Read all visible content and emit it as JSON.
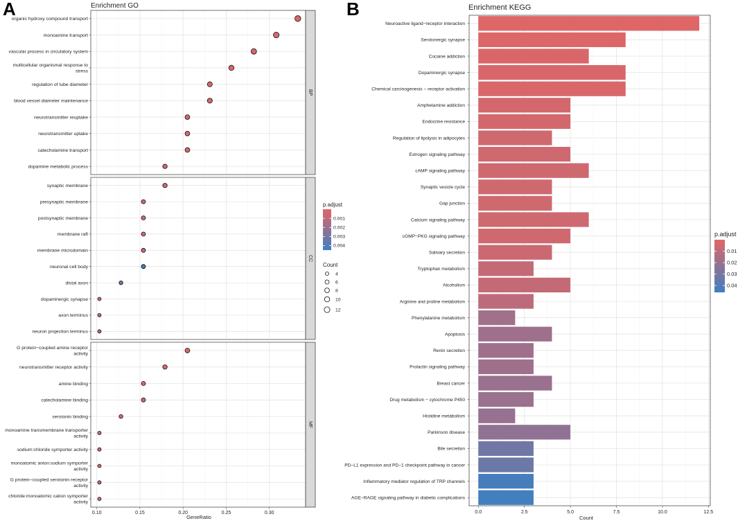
{
  "panels": {
    "a_letter": "A",
    "b_letter": "B"
  },
  "chart_data": [
    {
      "type": "scatter",
      "title": "Enrichment GO",
      "xlabel": "GeneRatio",
      "ylabel": "",
      "xlim": [
        0.093,
        0.342
      ],
      "x_ticks": [
        0.1,
        0.15,
        0.2,
        0.25,
        0.3
      ],
      "x_tick_labels": [
        "0.10",
        "0.15",
        "0.20",
        "0.25",
        "0.30"
      ],
      "grid": true,
      "color_legend": {
        "title": "p.adjust",
        "min": 0.0,
        "max": 0.0045,
        "ticks": [
          0.001,
          0.002,
          0.003,
          0.004
        ],
        "tick_labels": [
          "0.001",
          "0.002",
          "0.003",
          "0.004"
        ],
        "low_color": "#E06666",
        "high_color": "#3F7FC1"
      },
      "size_legend": {
        "title": "Count",
        "values": [
          4,
          6,
          8,
          10,
          12
        ],
        "labels": [
          "4",
          "6",
          "8",
          "10",
          "12"
        ]
      },
      "facets": [
        {
          "label": "BP",
          "points": [
            {
              "term": "organic hydroxy compound transport",
              "lines": [
                "organic hydroxy compound transport"
              ],
              "gene_ratio": 0.333,
              "count": 13,
              "p_adjust": 0.0002
            },
            {
              "term": "monoamine transport",
              "lines": [
                "monoamine transport"
              ],
              "gene_ratio": 0.308,
              "count": 12,
              "p_adjust": 0.0002
            },
            {
              "term": "vascular process in circulatory system",
              "lines": [
                "vascular process in circulatory system"
              ],
              "gene_ratio": 0.282,
              "count": 11,
              "p_adjust": 0.0003
            },
            {
              "term": "multicellular organismal response to stress",
              "lines": [
                "multicellular organismal response to",
                "stress"
              ],
              "gene_ratio": 0.256,
              "count": 10,
              "p_adjust": 0.0003
            },
            {
              "term": "regulation of tube diameter",
              "lines": [
                "regulation of tube diameter"
              ],
              "gene_ratio": 0.231,
              "count": 9,
              "p_adjust": 0.0004
            },
            {
              "term": "blood vessel diameter maintenance",
              "lines": [
                "blood vessel diameter maintenance"
              ],
              "gene_ratio": 0.231,
              "count": 9,
              "p_adjust": 0.0004
            },
            {
              "term": "neurotransmitter reuptake",
              "lines": [
                "neurotransmitter reuptake"
              ],
              "gene_ratio": 0.205,
              "count": 8,
              "p_adjust": 0.0003
            },
            {
              "term": "neurotransmitter uptake",
              "lines": [
                "neurotransmitter uptake"
              ],
              "gene_ratio": 0.205,
              "count": 8,
              "p_adjust": 0.0003
            },
            {
              "term": "catecholamine transport",
              "lines": [
                "catecholamine transport"
              ],
              "gene_ratio": 0.205,
              "count": 8,
              "p_adjust": 0.0003
            },
            {
              "term": "dopamine metabolic process",
              "lines": [
                "dopamine metabolic process"
              ],
              "gene_ratio": 0.179,
              "count": 7,
              "p_adjust": 0.0004
            }
          ]
        },
        {
          "label": "CC",
          "points": [
            {
              "term": "synaptic membrane",
              "lines": [
                "synaptic membrane"
              ],
              "gene_ratio": 0.179,
              "count": 7,
              "p_adjust": 0.0006
            },
            {
              "term": "presynaptic membrane",
              "lines": [
                "presynaptic membrane"
              ],
              "gene_ratio": 0.154,
              "count": 6,
              "p_adjust": 0.0006
            },
            {
              "term": "postsynaptic membrane",
              "lines": [
                "postsynaptic membrane"
              ],
              "gene_ratio": 0.154,
              "count": 6,
              "p_adjust": 0.0006
            },
            {
              "term": "membrane raft",
              "lines": [
                "membrane raft"
              ],
              "gene_ratio": 0.154,
              "count": 6,
              "p_adjust": 0.0006
            },
            {
              "term": "membrane microdomain",
              "lines": [
                "membrane microdomain"
              ],
              "gene_ratio": 0.154,
              "count": 6,
              "p_adjust": 0.0006
            },
            {
              "term": "neuronal cell body",
              "lines": [
                "neuronal cell body"
              ],
              "gene_ratio": 0.154,
              "count": 6,
              "p_adjust": 0.0045
            },
            {
              "term": "distal axon",
              "lines": [
                "distal axon"
              ],
              "gene_ratio": 0.128,
              "count": 5,
              "p_adjust": 0.0028
            },
            {
              "term": "dopaminergic synapse",
              "lines": [
                "dopaminergic synapse"
              ],
              "gene_ratio": 0.103,
              "count": 4,
              "p_adjust": 0.0006
            },
            {
              "term": "axon terminus",
              "lines": [
                "axon terminus"
              ],
              "gene_ratio": 0.103,
              "count": 4,
              "p_adjust": 0.0008
            },
            {
              "term": "neuron projection terminus",
              "lines": [
                "neuron projection terminus"
              ],
              "gene_ratio": 0.103,
              "count": 4,
              "p_adjust": 0.0008
            }
          ]
        },
        {
          "label": "MF",
          "points": [
            {
              "term": "G protein-coupled amine receptor activity",
              "lines": [
                "G protein−coupled amine receptor",
                "activity"
              ],
              "gene_ratio": 0.205,
              "count": 8,
              "p_adjust": 0.0002
            },
            {
              "term": "neurotransmitter receptor activity",
              "lines": [
                "neurotransmitter receptor activity"
              ],
              "gene_ratio": 0.179,
              "count": 7,
              "p_adjust": 0.0003
            },
            {
              "term": "amine binding",
              "lines": [
                "amine binding"
              ],
              "gene_ratio": 0.154,
              "count": 6,
              "p_adjust": 0.0002
            },
            {
              "term": "catecholamine binding",
              "lines": [
                "catecholamine binding"
              ],
              "gene_ratio": 0.154,
              "count": 6,
              "p_adjust": 0.0002
            },
            {
              "term": "serotonin binding",
              "lines": [
                "serotonin binding"
              ],
              "gene_ratio": 0.128,
              "count": 5,
              "p_adjust": 0.0002
            },
            {
              "term": "monoamine transmembrane transporter activity",
              "lines": [
                "monoamine transmembrane transporter",
                "activity"
              ],
              "gene_ratio": 0.103,
              "count": 4,
              "p_adjust": 0.0003
            },
            {
              "term": "sodium:chloride symporter activity",
              "lines": [
                "sodium:chloride symporter activity"
              ],
              "gene_ratio": 0.103,
              "count": 4,
              "p_adjust": 0.0003
            },
            {
              "term": "monoatomic anion:sodium symporter activity",
              "lines": [
                "monoatomic anion:sodium symporter",
                "activity"
              ],
              "gene_ratio": 0.103,
              "count": 4,
              "p_adjust": 0.0003
            },
            {
              "term": "G protein-coupled serotonin receptor activity",
              "lines": [
                "G protein−coupled serotonin receptor",
                "activity"
              ],
              "gene_ratio": 0.103,
              "count": 4,
              "p_adjust": 0.0003
            },
            {
              "term": "chloride:monoatomic cation symporter activity",
              "lines": [
                "chloride:monoatomic cation symporter",
                "activity"
              ],
              "gene_ratio": 0.103,
              "count": 4,
              "p_adjust": 0.0003
            }
          ]
        }
      ]
    },
    {
      "type": "bar",
      "orientation": "horizontal",
      "title": "Enrichment KEGG",
      "xlabel": "Count",
      "ylabel": "",
      "xlim": [
        -0.5,
        12.6
      ],
      "x_ticks": [
        0,
        2.5,
        5,
        7.5,
        10,
        12.5
      ],
      "x_tick_labels": [
        "0.0",
        "2.5",
        "5.0",
        "7.5",
        "10.0",
        "12.5"
      ],
      "grid": true,
      "color_legend": {
        "title": "p.adjust",
        "min": 0.0,
        "max": 0.046,
        "ticks": [
          0.01,
          0.02,
          0.03,
          0.04
        ],
        "tick_labels": [
          "0.01",
          "0.02",
          "0.03",
          "0.04"
        ],
        "low_color": "#E06666",
        "high_color": "#3F7FC1"
      },
      "categories": [
        "Neuroactive ligand−receptor interaction",
        "Serotonergic synapse",
        "Cocaine addiction",
        "Dopaminergic synapse",
        "Chemical carcinogenesis − receptor activation",
        "Amphetamine addiction",
        "Endocrine resistance",
        "Regulation of lipolysis in adipocytes",
        "Estrogen signaling pathway",
        "cAMP signaling pathway",
        "Synaptic vesicle cycle",
        "Gap junction",
        "Calcium signaling pathway",
        "cGMP−PKG signaling pathway",
        "Salivary secretion",
        "Tryptophan metabolism",
        "Alcoholism",
        "Arginine and proline metabolism",
        "Phenylalanine metabolism",
        "Apoptosis",
        "Renin secretion",
        "Prolactin signaling pathway",
        "Breast cancer",
        "Drug metabolism − cytochrome P450",
        "Histidine metabolism",
        "Parkinson disease",
        "Bile secretion",
        "PD−L1 expression and PD−1 checkpoint pathway in cancer",
        "Inflammatory mediator regulation of TRP channels",
        "AGE−RAGE signaling pathway in diabetic complications"
      ],
      "values": [
        12,
        8,
        6,
        8,
        8,
        5,
        5,
        4,
        5,
        6,
        4,
        4,
        6,
        5,
        4,
        3,
        5,
        3,
        2,
        4,
        3,
        3,
        4,
        3,
        2,
        5,
        3,
        3,
        3,
        3
      ],
      "p_adjust": [
        0.0005,
        0.001,
        0.002,
        0.002,
        0.002,
        0.004,
        0.004,
        0.005,
        0.005,
        0.005,
        0.005,
        0.005,
        0.005,
        0.005,
        0.006,
        0.008,
        0.008,
        0.01,
        0.018,
        0.019,
        0.019,
        0.019,
        0.02,
        0.02,
        0.021,
        0.023,
        0.032,
        0.033,
        0.044,
        0.045
      ]
    }
  ]
}
